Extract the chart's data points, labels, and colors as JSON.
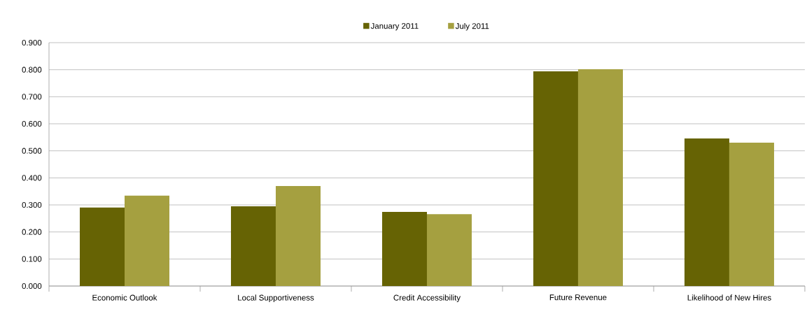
{
  "chart_data": {
    "type": "bar",
    "categories": [
      "Economic Outlook",
      "Local Supportiveness",
      "Credit Accessibility",
      "Future Revenue",
      "Likelihood of New Hires"
    ],
    "series": [
      {
        "name": "January 2011",
        "color": "#666304",
        "values": [
          0.29,
          0.295,
          0.274,
          0.794,
          0.546
        ]
      },
      {
        "name": "July 2011",
        "color": "#a5a040",
        "values": [
          0.334,
          0.37,
          0.266,
          0.802,
          0.53
        ]
      }
    ],
    "ylim": [
      0,
      0.9
    ],
    "yticks": [
      {
        "value": 0,
        "label": "0.000"
      },
      {
        "value": 0.1,
        "label": "0.100"
      },
      {
        "value": 0.2,
        "label": "0.200"
      },
      {
        "value": 0.3,
        "label": "0.300"
      },
      {
        "value": 0.4,
        "label": "0.400"
      },
      {
        "value": 0.5,
        "label": "0.500"
      },
      {
        "value": 0.6,
        "label": "0.600"
      },
      {
        "value": 0.7,
        "label": "0.700"
      },
      {
        "value": 0.8,
        "label": "0.800"
      },
      {
        "value": 0.9,
        "label": "0.900"
      }
    ],
    "grid": "y",
    "legend": "top"
  }
}
